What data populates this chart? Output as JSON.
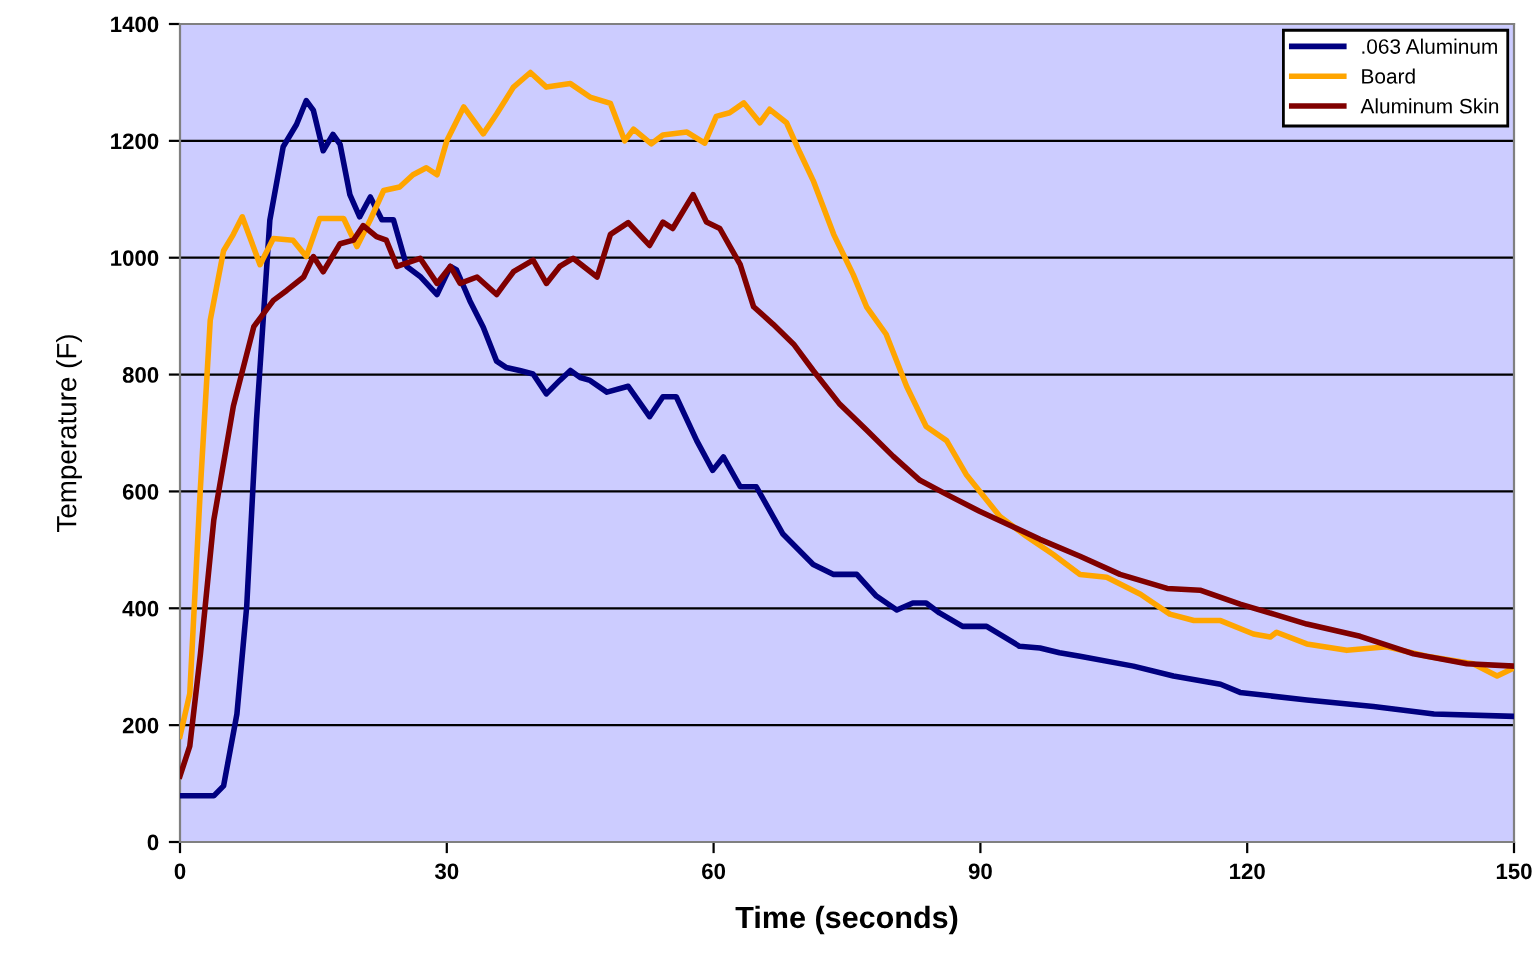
{
  "chart_data": {
    "type": "line",
    "xlabel": "Time (seconds)",
    "ylabel": "Temperature (F)",
    "xlim": [
      0,
      150
    ],
    "xticks": [
      0,
      30,
      60,
      90,
      120,
      150
    ],
    "ylim": [
      0,
      1400
    ],
    "yticks": [
      0,
      200,
      400,
      600,
      800,
      1000,
      1200,
      1400
    ],
    "grid": "y",
    "legend": "top right",
    "marker": "none",
    "line_style": "solid",
    "series": [
      {
        "name": ".063 Aluminum",
        "color": "#000080",
        "x": [
          0,
          3.8,
          4.9,
          6.4,
          7.5,
          8.6,
          10.1,
          11.6,
          13.1,
          14.2,
          15,
          16.1,
          17.2,
          18,
          19.1,
          20.2,
          21.4,
          22.7,
          24,
          25.5,
          27,
          28.9,
          30.4,
          31.1,
          32.6,
          34.1,
          35.6,
          36.7,
          38.2,
          39.7,
          41.2,
          42.7,
          43.9,
          45,
          46.1,
          48,
          50.4,
          52.8,
          54.3,
          55.8,
          58.1,
          59.9,
          61.1,
          63,
          64.8,
          67.8,
          71.2,
          73.5,
          76.1,
          78.3,
          80.6,
          82.4,
          83.9,
          85.4,
          88,
          90.7,
          94.4,
          96.7,
          98.9,
          101.2,
          107.2,
          111.7,
          117,
          119.2,
          126.7,
          134.2,
          141,
          150
        ],
        "values": [
          79,
          79,
          96,
          219,
          403,
          722,
          1064,
          1190,
          1228,
          1269,
          1252,
          1183,
          1211,
          1194,
          1108,
          1070,
          1104,
          1065,
          1065,
          985,
          968,
          937,
          985,
          979,
          926,
          881,
          823,
          812,
          807,
          801,
          767,
          790,
          807,
          795,
          790,
          770,
          780,
          728,
          762,
          762,
          687,
          636,
          659,
          608,
          608,
          527,
          475,
          458,
          458,
          421,
          397,
          409,
          409,
          392,
          369,
          369,
          335,
          332,
          324,
          318,
          301,
          284,
          270,
          256,
          243,
          232,
          219,
          215
        ]
      },
      {
        "name": "Board",
        "color": "#ffa500",
        "x": [
          0,
          1.1,
          2.3,
          3.4,
          4.9,
          6,
          7,
          9,
          10.5,
          12.7,
          14.2,
          15.7,
          18.4,
          19.9,
          21.4,
          22.9,
          24.7,
          26.2,
          27.7,
          28.9,
          30,
          31.9,
          34.1,
          35.6,
          37.5,
          39.4,
          41.2,
          43.9,
          46.1,
          48.4,
          50,
          51,
          53,
          54.3,
          57,
          59,
          60.3,
          61.8,
          63.4,
          65.2,
          66.3,
          68.2,
          69.7,
          71.2,
          73.5,
          75.7,
          77.2,
          79.4,
          81.7,
          83.9,
          86.2,
          88.4,
          92.2,
          95.2,
          98.2,
          101.2,
          104.2,
          108,
          111.3,
          114,
          117,
          120.7,
          122.6,
          123.3,
          126.7,
          131.2,
          135.7,
          140.2,
          145.4,
          148.1,
          150
        ],
        "values": [
          181,
          254,
          608,
          893,
          1012,
          1040,
          1070,
          988,
          1033,
          1030,
          1002,
          1067,
          1067,
          1019,
          1065,
          1115,
          1121,
          1142,
          1154,
          1142,
          1200,
          1258,
          1212,
          1246,
          1292,
          1317,
          1292,
          1298,
          1275,
          1264,
          1200,
          1220,
          1195,
          1210,
          1215,
          1196,
          1242,
          1248,
          1265,
          1231,
          1254,
          1231,
          1180,
          1132,
          1040,
          971,
          916,
          869,
          780,
          711,
          687,
          629,
          557,
          523,
          492,
          458,
          453,
          424,
          390,
          379,
          379,
          356,
          351,
          359,
          339,
          328,
          334,
          318,
          305,
          284,
          298
        ]
      },
      {
        "name": "Aluminum Skin",
        "color": "#800000",
        "x": [
          0,
          1.1,
          2.3,
          3.8,
          6,
          8.3,
          10.5,
          12,
          13.9,
          15,
          16.1,
          18,
          19.5,
          20.6,
          22.1,
          23.2,
          24.4,
          27,
          28.9,
          30.4,
          31.5,
          33.4,
          35.6,
          37.5,
          39.7,
          41.2,
          42.7,
          44.2,
          46.9,
          48.4,
          50.4,
          52.8,
          54.3,
          55.4,
          57.7,
          59.2,
          60.7,
          63,
          64.5,
          66.7,
          69,
          71.2,
          74.2,
          77.2,
          80.2,
          83.2,
          86.2,
          89.9,
          93.6,
          96.7,
          101.2,
          105.7,
          111,
          114.7,
          119.2,
          123,
          126.7,
          132.7,
          138.7,
          144.7,
          150
        ],
        "values": [
          113,
          164,
          322,
          551,
          746,
          882,
          927,
          944,
          967,
          1002,
          976,
          1024,
          1030,
          1055,
          1036,
          1030,
          985,
          999,
          956,
          985,
          956,
          967,
          937,
          976,
          996,
          956,
          985,
          999,
          967,
          1040,
          1060,
          1021,
          1061,
          1050,
          1108,
          1061,
          1050,
          988,
          916,
          886,
          852,
          807,
          749,
          705,
          660,
          619,
          595,
          566,
          540,
          518,
          489,
          458,
          434,
          431,
          407,
          390,
          373,
          352,
          322,
          305,
          301
        ]
      }
    ]
  }
}
